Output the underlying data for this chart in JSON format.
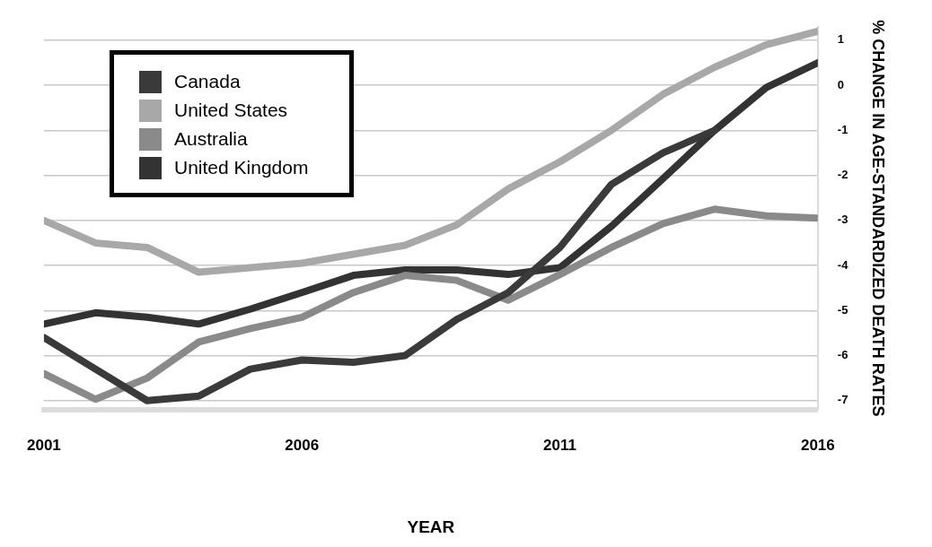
{
  "chart_data": {
    "type": "line",
    "x": [
      2001,
      2002,
      2003,
      2004,
      2005,
      2006,
      2007,
      2008,
      2009,
      2010,
      2011,
      2012,
      2013,
      2014,
      2015,
      2016
    ],
    "series": [
      {
        "name": "Canada",
        "color": "#3a3a3a",
        "x": [
          2001,
          2002,
          2003,
          2004,
          2005,
          2006,
          2007,
          2008,
          2009,
          2010,
          2011,
          2012,
          2013,
          2014
        ],
        "values": [
          -5.6,
          -6.3,
          -7.0,
          -6.9,
          -6.3,
          -6.1,
          -6.15,
          -6.0,
          -5.2,
          -4.6,
          -3.6,
          -2.2,
          -1.5,
          -1.0
        ]
      },
      {
        "name": "United States",
        "color": "#a8a8a8",
        "values": [
          -3.0,
          -3.5,
          -3.6,
          -4.15,
          -4.05,
          -3.95,
          -3.75,
          -3.55,
          -3.1,
          -2.3,
          -1.7,
          -1.0,
          -0.2,
          0.4,
          0.9,
          1.2
        ]
      },
      {
        "name": "Australia",
        "color": "#8a8a8a",
        "values": [
          -6.4,
          -6.97,
          -6.5,
          -5.7,
          -5.4,
          -5.15,
          -4.6,
          -4.22,
          -4.33,
          -4.77,
          -4.2,
          -3.6,
          -3.07,
          -2.75,
          -2.9,
          -2.95
        ]
      },
      {
        "name": "United Kingdom",
        "color": "#333333",
        "values": [
          -5.3,
          -5.05,
          -5.15,
          -5.3,
          -4.97,
          -4.6,
          -4.22,
          -4.1,
          -4.1,
          -4.2,
          -4.05,
          -3.13,
          -2.07,
          -1.0,
          -0.05,
          0.5
        ]
      }
    ],
    "xlabel": "YEAR",
    "ylabel": "% CHANGE IN AGE-STANDARDIZED DEATH RATES",
    "xlim": [
      2001,
      2016
    ],
    "xticks": [
      2001,
      2006,
      2011,
      2016
    ],
    "ylim": [
      -7.2,
      1.3
    ],
    "yticks": [
      -7,
      -6,
      -5,
      -4,
      -3,
      -2,
      -1,
      0,
      1
    ],
    "grid": "y",
    "legend": "top left",
    "marker": "none",
    "line_style": "solid"
  }
}
